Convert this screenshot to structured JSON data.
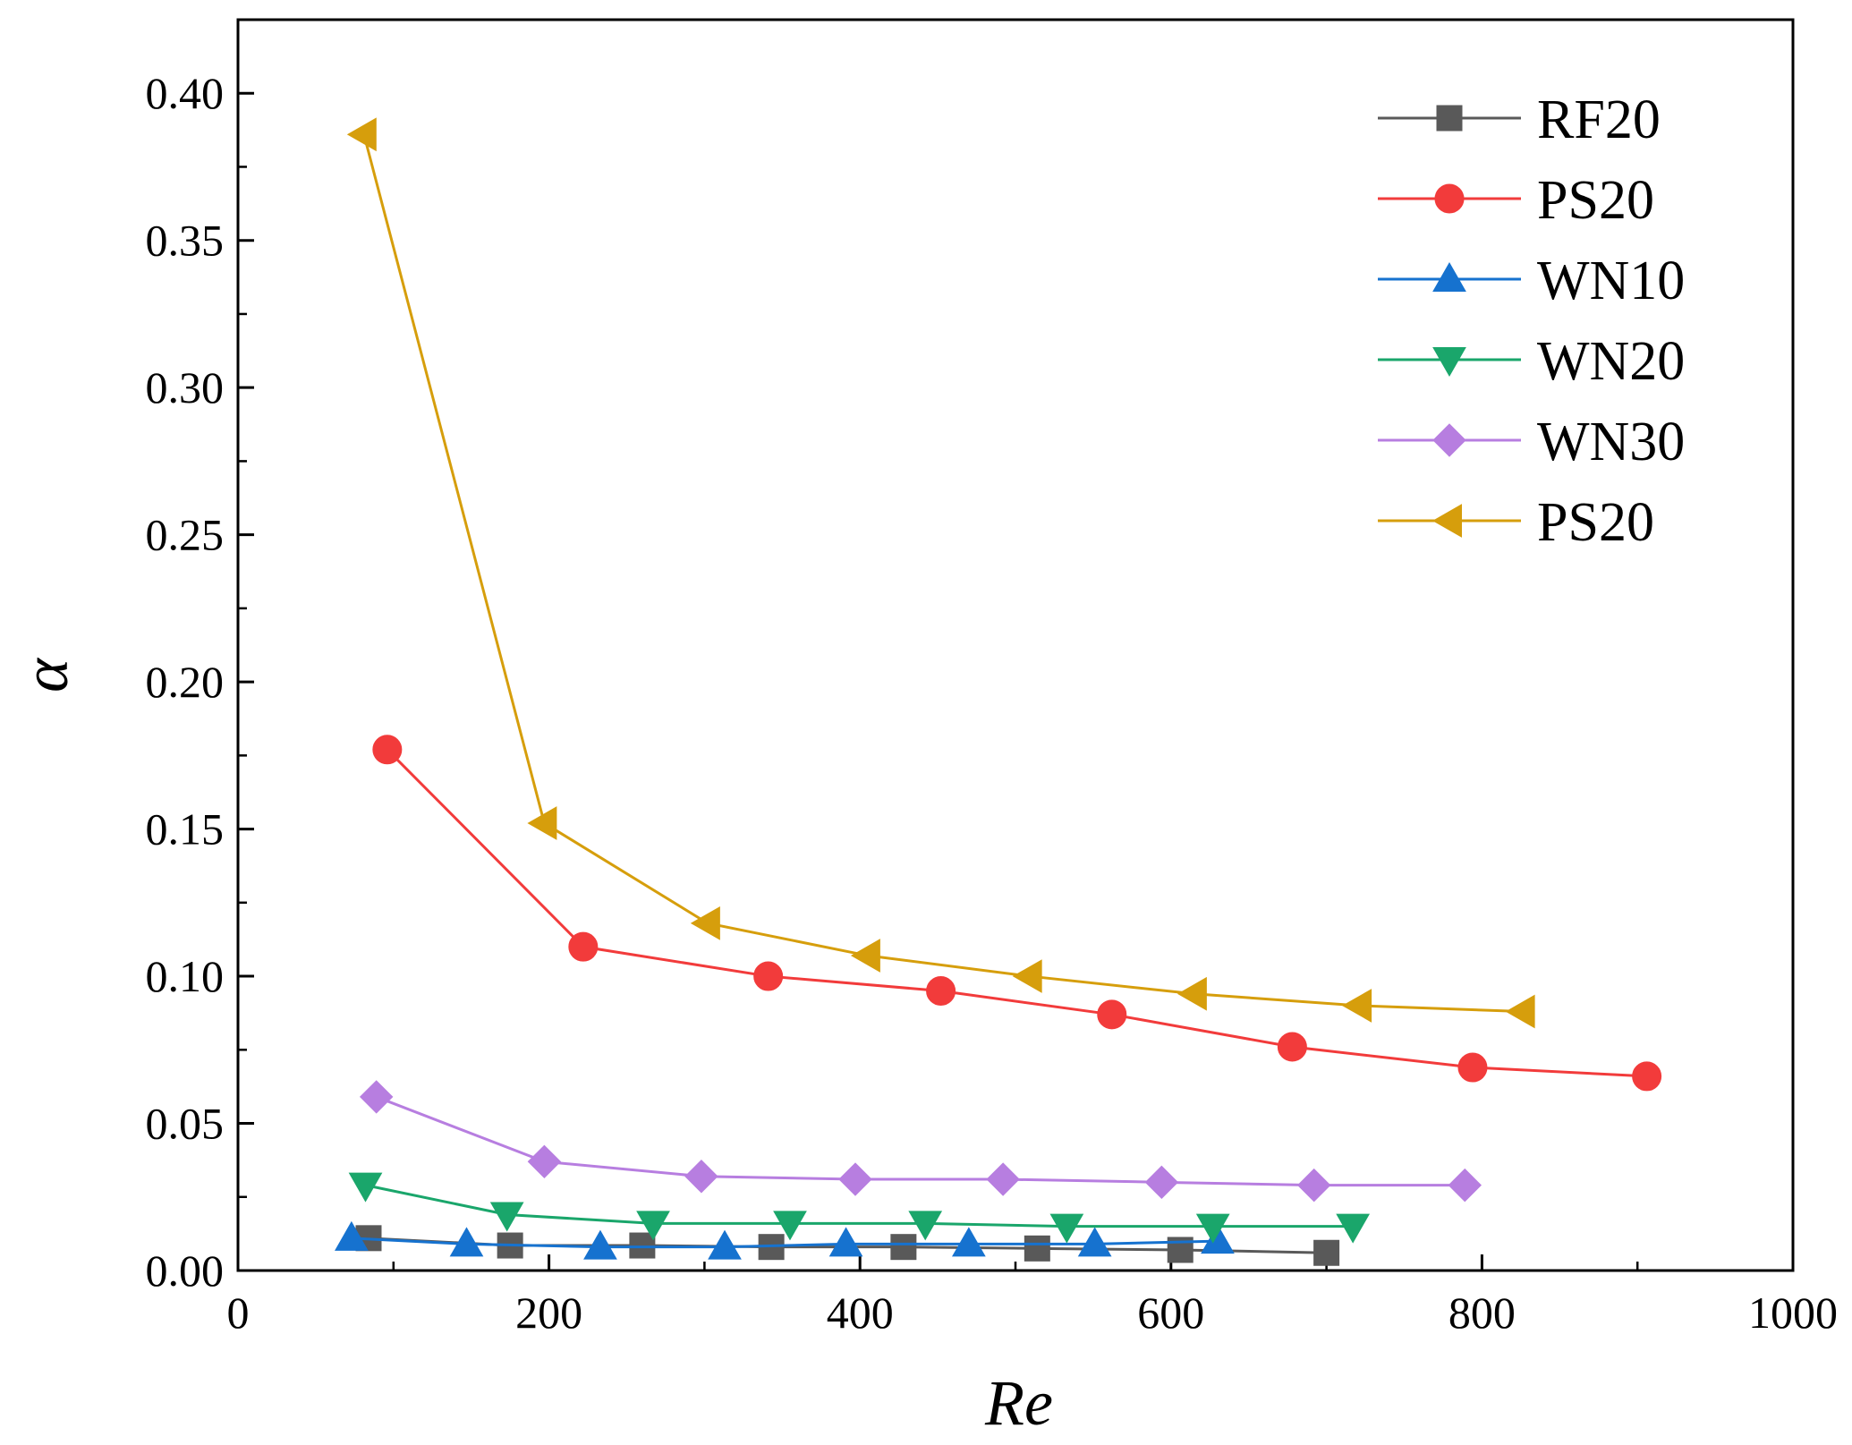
{
  "chart_data": {
    "type": "line",
    "title": "",
    "xlabel": "Re",
    "ylabel": "α",
    "xlim": [
      0,
      1000
    ],
    "ylim": [
      0,
      0.425
    ],
    "xticks": [
      0,
      200,
      400,
      600,
      800,
      1000
    ],
    "xtick_labels": [
      "0",
      "200",
      "400",
      "600",
      "800",
      "1000"
    ],
    "yticks": [
      0,
      0.05,
      0.1,
      0.15,
      0.2,
      0.25,
      0.3,
      0.35,
      0.4
    ],
    "ytick_labels": [
      "0.00",
      "0.05",
      "0.10",
      "0.15",
      "0.20",
      "0.25",
      "0.30",
      "0.35",
      "0.40"
    ],
    "grid": false,
    "legend_position": "top-right",
    "series": [
      {
        "name": "RF20",
        "color": "#595959",
        "marker": "square",
        "x": [
          84,
          175,
          260,
          343,
          428,
          514,
          606,
          700
        ],
        "y": [
          0.011,
          0.0085,
          0.0085,
          0.008,
          0.008,
          0.0075,
          0.007,
          0.006
        ]
      },
      {
        "name": "PS20",
        "color": "#f23b3b",
        "marker": "circle",
        "x": [
          96,
          222,
          341,
          452,
          562,
          678,
          794,
          906
        ],
        "y": [
          0.177,
          0.11,
          0.1,
          0.095,
          0.087,
          0.076,
          0.069,
          0.066
        ]
      },
      {
        "name": "WN10",
        "color": "#1672cf",
        "marker": "triangle-up",
        "x": [
          73,
          147,
          233,
          313,
          391,
          470,
          551,
          630
        ],
        "y": [
          0.011,
          0.009,
          0.008,
          0.008,
          0.009,
          0.009,
          0.009,
          0.01
        ]
      },
      {
        "name": "WN20",
        "color": "#1aa66b",
        "marker": "triangle-down",
        "x": [
          82,
          173,
          267,
          355,
          442,
          533,
          627,
          717
        ],
        "y": [
          0.029,
          0.019,
          0.016,
          0.016,
          0.016,
          0.015,
          0.015,
          0.015
        ]
      },
      {
        "name": "WN30",
        "color": "#b77ee0",
        "marker": "diamond",
        "x": [
          89,
          197,
          298,
          397,
          492,
          594,
          692,
          789
        ],
        "y": [
          0.059,
          0.037,
          0.032,
          0.031,
          0.031,
          0.03,
          0.029,
          0.029
        ]
      },
      {
        "name": "PS20",
        "color": "#d69e0c",
        "marker": "triangle-left",
        "x": [
          81,
          197,
          302,
          405,
          509,
          615,
          721,
          826
        ],
        "y": [
          0.386,
          0.152,
          0.118,
          0.107,
          0.1,
          0.094,
          0.09,
          0.088
        ]
      }
    ]
  }
}
